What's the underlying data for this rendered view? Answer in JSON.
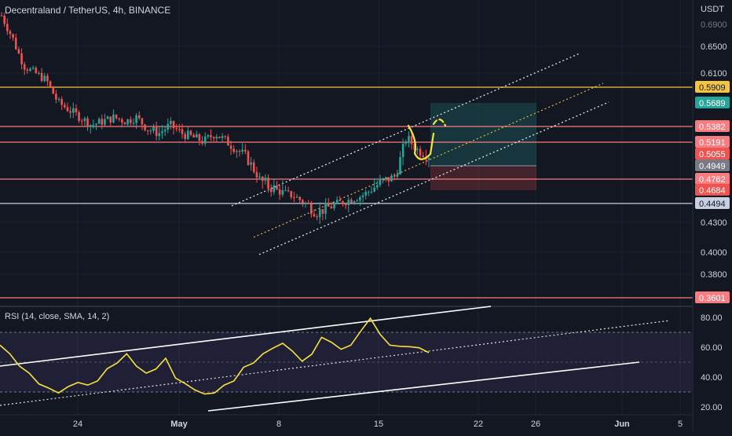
{
  "header": {
    "symbol_line": "Decentraland / TetherUS, 4h, BINANCE",
    "currency": "USDT"
  },
  "rsi_header": "RSI (14, close, SMA, 14, 2)",
  "colors": {
    "background": "#131722",
    "grid": "#1e222d",
    "up": "#26a69a",
    "down": "#ef5350",
    "gold": "#f5c542",
    "red_line": "#f77c80",
    "blue_line": "#c7d0e0",
    "rsi": "#f7e23b",
    "rsi_band": "#7e57c2"
  },
  "chart_data": [
    {
      "type": "candlestick",
      "title": "Decentraland / TetherUS, 4h, BINANCE",
      "y_unit": "USDT",
      "price_axis_ticks": [
        "0.6500",
        "0.6100",
        "0.4300",
        "0.4000",
        "0.3800"
      ],
      "x_tick_labels": [
        "24",
        "May",
        "8",
        "15",
        "22",
        "26",
        "Jun",
        "5"
      ],
      "horizontal_levels": [
        {
          "value": 0.5909,
          "label": "0.5909",
          "color": "#f5c542"
        },
        {
          "value": 0.5382,
          "label": "0.5382",
          "color": "#f77c80"
        },
        {
          "value": 0.5191,
          "label": "0.5191",
          "color": "#f77c80"
        },
        {
          "value": 0.4762,
          "label": "0.4762",
          "color": "#f77c80"
        },
        {
          "value": 0.4494,
          "label": "0.4494",
          "color": "#c7d0e0"
        },
        {
          "value": 0.3601,
          "label": "0.3601",
          "color": "#f77c80"
        }
      ],
      "price_labels": [
        {
          "label": "0.5689",
          "color": "#26a69a"
        },
        {
          "label": "0.5055",
          "color": "#ef5350"
        },
        {
          "label": "0.4949",
          "color": "#787b86"
        },
        {
          "label": "0.4684",
          "color": "#ef5350"
        }
      ],
      "position_tool": {
        "entry": 0.4949,
        "target": 0.5689,
        "stop": 0.4684
      },
      "close_path": [
        0.69,
        0.66,
        0.62,
        0.61,
        0.6,
        0.57,
        0.56,
        0.55,
        0.54,
        0.545,
        0.55,
        0.545,
        0.55,
        0.535,
        0.53,
        0.54,
        0.53,
        0.525,
        0.52,
        0.53,
        0.52,
        0.51,
        0.5,
        0.475,
        0.47,
        0.465,
        0.46,
        0.45,
        0.44,
        0.445,
        0.45,
        0.455,
        0.46,
        0.47,
        0.475,
        0.48,
        0.525,
        0.51,
        0.505
      ]
    },
    {
      "type": "line",
      "title": "RSI (14, close, SMA, 14, 2)",
      "y_ticks": [
        "80.00",
        "60.00",
        "40.00",
        "20.00"
      ],
      "ylim": [
        15,
        90
      ],
      "band": [
        30,
        70
      ],
      "values": [
        62,
        55,
        48,
        42,
        36,
        32,
        30,
        33,
        37,
        34,
        38,
        45,
        50,
        55,
        48,
        42,
        46,
        52,
        40,
        35,
        32,
        28,
        30,
        34,
        38,
        46,
        50,
        55,
        60,
        62,
        58,
        50,
        56,
        66,
        64,
        58,
        62,
        70,
        80,
        68,
        62,
        60,
        61,
        59,
        57
      ]
    }
  ]
}
